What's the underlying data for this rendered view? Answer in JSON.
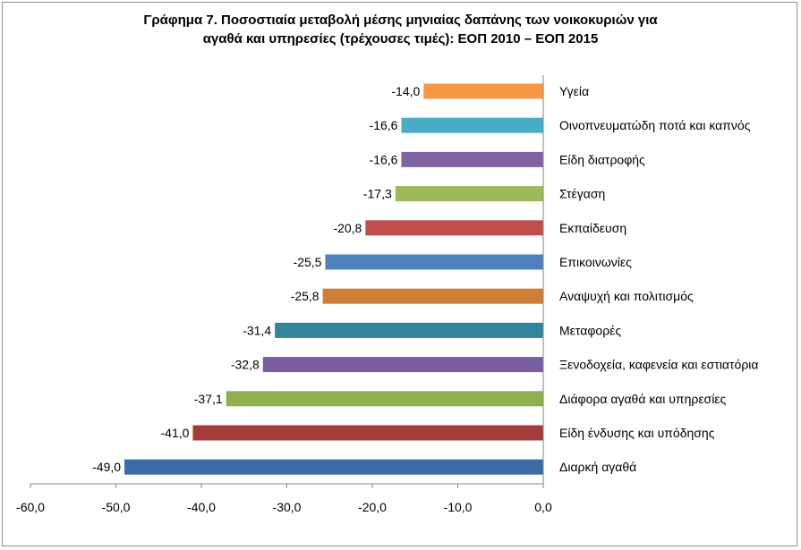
{
  "chart_data": {
    "type": "bar",
    "orientation": "horizontal",
    "title_line1": "Γράφημα 7. Ποσοστιαία μεταβολή μέσης μηνιαίας δαπάνης των νοικοκυριών για",
    "title_line2": "αγαθά και υπηρεσίες (τρέχουσες τιμές): ΕΟΠ 2010 – ΕΟΠ 2015",
    "categories": [
      "Υγεία",
      "Οινοπνευματώδη ποτά και καπνός",
      "Είδη διατροφής",
      "Στέγαση",
      "Εκπαίδευση",
      "Επικοινωνίες",
      "Αναψυχή και πολιτισμός",
      "Μεταφορές",
      "Ξενοδοχεία, καφενεία και εστιατόρια",
      "Διάφορα αγαθά και υπηρεσίες",
      "Είδη ένδυσης και υπόδησης",
      "Διαρκή αγαθά"
    ],
    "values": [
      -14.0,
      -16.6,
      -16.6,
      -17.3,
      -20.8,
      -25.5,
      -25.8,
      -31.4,
      -32.8,
      -37.1,
      -41.0,
      -49.0
    ],
    "value_labels": [
      "-14,0",
      "-16,6",
      "-16,6",
      "-17,3",
      "-20,8",
      "-25,5",
      "-25,8",
      "-31,4",
      "-32,8",
      "-37,1",
      "-41,0",
      "-49,0"
    ],
    "colors": [
      "#f79646",
      "#4bacc6",
      "#8064a2",
      "#9bbb59",
      "#c0504d",
      "#4f81bd",
      "#d07d3a",
      "#31859c",
      "#7a5ca0",
      "#8fb04f",
      "#a33c3a",
      "#3e6ba8"
    ],
    "xlim": [
      -60,
      0
    ],
    "xticks": [
      -60,
      -50,
      -40,
      -30,
      -20,
      -10,
      0
    ],
    "xtick_labels": [
      "-60,0",
      "-50,0",
      "-40,0",
      "-30,0",
      "-20,0",
      "-10,0",
      "0,0"
    ],
    "grid": false,
    "legend": "none"
  }
}
